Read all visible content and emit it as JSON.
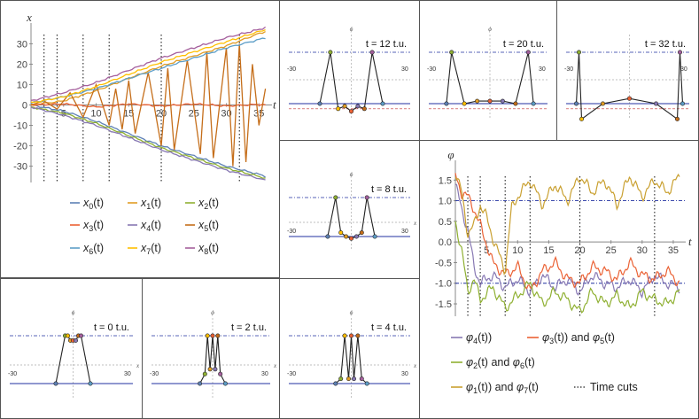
{
  "chart_data": [
    {
      "id": "trajectories",
      "type": "line",
      "xlabel": "t",
      "ylabel": "x",
      "xlim": [
        0,
        37
      ],
      "ylim": [
        -38,
        38
      ],
      "xticks": [
        5,
        10,
        15,
        20,
        25,
        30,
        35
      ],
      "yticks": [
        -30,
        -20,
        -10,
        0,
        10,
        20,
        30
      ],
      "time_cuts": [
        2,
        4,
        8,
        12,
        20,
        32
      ],
      "series": [
        {
          "name": "x",
          "sub": "0",
          "color": "#5e81b5",
          "x": [
            0,
            5,
            10,
            15,
            20,
            25,
            30,
            35,
            36
          ],
          "y": [
            0,
            -3,
            -8,
            -14,
            -20,
            -25,
            -30,
            -34,
            -35
          ]
        },
        {
          "name": "x",
          "sub": "1",
          "color": "#e19c24",
          "x": [
            0,
            5,
            10,
            15,
            20,
            25,
            30,
            35,
            36
          ],
          "y": [
            0,
            2,
            7,
            13,
            19,
            24,
            29,
            35,
            36
          ]
        },
        {
          "name": "x",
          "sub": "2",
          "color": "#8fb032",
          "x": [
            0,
            5,
            10,
            15,
            20,
            25,
            30,
            35,
            36
          ],
          "y": [
            -1,
            -4,
            -9,
            -15,
            -21,
            -26,
            -31,
            -35,
            -36
          ]
        },
        {
          "name": "x",
          "sub": "3",
          "color": "#eb6235",
          "x": [
            0,
            5,
            10,
            15,
            20,
            25,
            30,
            35,
            36
          ],
          "y": [
            0,
            0.5,
            -1,
            0.5,
            -0.5,
            0.5,
            -0.5,
            0.3,
            0
          ]
        },
        {
          "name": "x",
          "sub": "4",
          "color": "#8778b3",
          "x": [
            0,
            5,
            10,
            15,
            20,
            25,
            30,
            35,
            36
          ],
          "y": [
            -1,
            -5,
            -10,
            -16,
            -22,
            -27,
            -32,
            -36,
            -37
          ]
        },
        {
          "name": "x",
          "sub": "5",
          "color": "#c56e1a",
          "x": [
            0,
            2,
            4,
            6,
            8,
            10,
            12,
            13,
            14,
            15,
            16,
            18,
            20,
            21,
            22,
            24,
            26,
            27,
            28,
            30,
            31,
            32,
            33,
            34,
            35,
            36
          ],
          "y": [
            0,
            2,
            -2,
            6,
            -6,
            10,
            -10,
            8,
            -12,
            12,
            -14,
            16,
            -20,
            18,
            -22,
            22,
            -24,
            26,
            -26,
            28,
            -30,
            30,
            -28,
            20,
            -10,
            8
          ]
        },
        {
          "name": "x",
          "sub": "6",
          "color": "#5d9ec7",
          "x": [
            0,
            5,
            10,
            15,
            20,
            25,
            30,
            35,
            36
          ],
          "y": [
            1,
            4,
            8,
            13,
            18,
            23,
            28,
            32,
            33
          ]
        },
        {
          "name": "x",
          "sub": "7",
          "color": "#ffbf00",
          "x": [
            0,
            5,
            10,
            15,
            20,
            25,
            30,
            35,
            36
          ],
          "y": [
            1,
            4,
            9,
            15,
            21,
            26,
            31,
            36,
            37
          ]
        },
        {
          "name": "x",
          "sub": "8",
          "color": "#a5609d",
          "x": [
            0,
            5,
            10,
            15,
            20,
            25,
            30,
            35,
            36
          ],
          "y": [
            2,
            6,
            11,
            17,
            23,
            28,
            33,
            37,
            38
          ]
        }
      ]
    },
    {
      "id": "phases",
      "type": "line",
      "xlabel": "t",
      "ylabel": "φ",
      "xlim": [
        0,
        37
      ],
      "ylim": [
        -1.8,
        1.85
      ],
      "xticks": [
        5,
        10,
        15,
        20,
        25,
        30,
        35
      ],
      "yticks": [
        -1.5,
        -1.0,
        -0.5,
        0.0,
        0.5,
        1.0,
        1.5
      ],
      "ref_lines": [
        1.0,
        -1.0
      ],
      "time_cuts": [
        2,
        4,
        8,
        12,
        20,
        32
      ],
      "series": [
        {
          "label": [
            "φ₄(t))"
          ],
          "color": "#8778b3",
          "x": [
            0,
            1,
            2,
            3,
            4,
            6,
            8,
            10,
            12,
            14,
            16,
            18,
            20,
            22,
            24,
            26,
            28,
            30,
            32,
            34,
            36
          ],
          "y": [
            1.4,
            0.8,
            0.3,
            -0.6,
            -1.0,
            -0.8,
            -1.1,
            -0.9,
            -1.2,
            -0.8,
            -1.1,
            -0.9,
            -1.2,
            -0.8,
            -1.0,
            -1.1,
            -0.9,
            -1.2,
            -0.8,
            -1.0,
            -1.1
          ]
        },
        {
          "label": [
            "φ₃(t)) and ",
            "φ₅(t)"
          ],
          "color": "#eb6235",
          "x": [
            0,
            1,
            2,
            3,
            4,
            6,
            8,
            10,
            12,
            14,
            16,
            18,
            20,
            22,
            24,
            26,
            28,
            30,
            32,
            34,
            36
          ],
          "y": [
            1.6,
            1.2,
            1.1,
            0.8,
            0.4,
            -0.5,
            -0.8,
            -0.6,
            -1.2,
            -0.7,
            -0.5,
            -0.9,
            -1.0,
            -0.6,
            -0.7,
            -0.9,
            -0.5,
            -0.8,
            -0.9,
            -0.7,
            -1.0
          ]
        },
        {
          "label": [
            "φ₂(t) and ",
            "φ₆(t)"
          ],
          "color": "#8fb032",
          "x": [
            0,
            1,
            2,
            3,
            4,
            6,
            8,
            10,
            12,
            14,
            16,
            18,
            20,
            22,
            24,
            26,
            28,
            30,
            32,
            34,
            36
          ],
          "y": [
            0.5,
            -0.2,
            -1.2,
            -0.9,
            -1.4,
            -1.1,
            -1.6,
            -1.3,
            -1.0,
            -1.5,
            -1.2,
            -1.4,
            -1.7,
            -1.2,
            -1.5,
            -1.3,
            -1.6,
            -1.2,
            -1.4,
            -1.5,
            -1.2
          ]
        },
        {
          "label": [
            "φ₁(t)) and ",
            "φ₇(t)"
          ],
          "color": "#c9a030",
          "x": [
            0,
            1,
            2,
            3,
            4,
            5,
            6,
            8,
            9,
            10,
            11,
            12,
            14,
            16,
            18,
            20,
            22,
            24,
            26,
            28,
            30,
            32,
            34,
            36
          ],
          "y": [
            1.7,
            1.2,
            0.2,
            0.4,
            0.9,
            0.6,
            0.1,
            -0.7,
            0.8,
            1.1,
            1.3,
            1.5,
            0.9,
            1.4,
            1.0,
            1.6,
            1.2,
            1.5,
            0.9,
            1.6,
            1.1,
            1.5,
            1.2,
            1.6
          ]
        }
      ],
      "time_cuts_label": "Time cuts"
    }
  ],
  "x_legend": [
    {
      "sub": "0",
      "suffix": "(t)"
    },
    {
      "sub": "1",
      "suffix": "(t)"
    },
    {
      "sub": "2",
      "suffix": "(t)"
    },
    {
      "sub": "3",
      "suffix": "(t)"
    },
    {
      "sub": "4",
      "suffix": "(t)"
    },
    {
      "sub": "5",
      "suffix": "(t)"
    },
    {
      "sub": "6",
      "suffix": "(t)"
    },
    {
      "sub": "7",
      "suffix": "(t)"
    },
    {
      "sub": "8",
      "suffix": "(t)"
    }
  ],
  "snapshots": [
    {
      "label": "t = 0 t.u.",
      "phi_label": "ϕ",
      "x_label": "x",
      "left_tick": "-30",
      "right_tick": "30",
      "points_x": [
        -13,
        -6,
        -4,
        -2,
        0,
        2,
        4,
        6,
        13
      ],
      "points_phi": [
        0,
        1,
        1,
        0.9,
        0.9,
        0.9,
        1,
        1,
        0
      ],
      "colors": [
        "#5e81b5",
        "#8fb032",
        "#ffbf00",
        "#e19c24",
        "#eb6235",
        "#8778b3",
        "#c56e1a",
        "#a5609d",
        "#5d9ec7"
      ]
    },
    {
      "label": "t = 2 t.u.",
      "phi_label": "ϕ",
      "x_label": "x",
      "left_tick": "-30",
      "right_tick": "30",
      "points_x": [
        -10,
        -6,
        -4,
        -2,
        0,
        2,
        4,
        6,
        10
      ],
      "points_phi": [
        0,
        0.2,
        1,
        0.3,
        1,
        0.3,
        1,
        0.2,
        0
      ],
      "colors": [
        "#5e81b5",
        "#8fb032",
        "#ffbf00",
        "#e19c24",
        "#eb6235",
        "#8778b3",
        "#c56e1a",
        "#a5609d",
        "#5d9ec7"
      ]
    },
    {
      "label": "t = 4 t.u.",
      "phi_label": "ϕ",
      "x_label": "x",
      "left_tick": "-30",
      "right_tick": "30",
      "points_x": [
        -12,
        -8,
        -5,
        -2,
        0,
        2,
        5,
        8,
        12
      ],
      "points_phi": [
        0,
        0.1,
        1,
        0.1,
        1,
        0.1,
        1,
        0.1,
        0
      ],
      "colors": [
        "#5e81b5",
        "#8fb032",
        "#ffbf00",
        "#e19c24",
        "#eb6235",
        "#8778b3",
        "#c56e1a",
        "#a5609d",
        "#5d9ec7"
      ]
    },
    {
      "label": "t = 8 t.u.",
      "phi_label": "ϕ",
      "x_label": "x",
      "left_tick": "-30",
      "right_tick": "30",
      "points_x": [
        -18,
        -12,
        -8,
        -4,
        0,
        4,
        8,
        12,
        18
      ],
      "points_phi": [
        0,
        1,
        0.1,
        0,
        -0.05,
        0,
        0.1,
        1,
        0
      ],
      "colors": [
        "#5e81b5",
        "#8fb032",
        "#ffbf00",
        "#e19c24",
        "#eb6235",
        "#8778b3",
        "#c56e1a",
        "#a5609d",
        "#5d9ec7"
      ]
    },
    {
      "label": "t = 12 t.u.",
      "phi_label": "ϕ",
      "x_label": "",
      "left_tick": "-30",
      "right_tick": "30",
      "points_x": [
        -24,
        -16,
        -10,
        -5,
        0,
        5,
        10,
        16,
        24
      ],
      "points_phi": [
        0,
        1,
        -0.1,
        -0.05,
        -0.15,
        -0.05,
        -0.1,
        1,
        0
      ],
      "colors": [
        "#5e81b5",
        "#8fb032",
        "#ffbf00",
        "#e19c24",
        "#eb6235",
        "#8778b3",
        "#c56e1a",
        "#a5609d",
        "#5d9ec7"
      ]
    },
    {
      "label": "t = 20 t.u.",
      "phi_label": "ϕ",
      "x_label": "",
      "left_tick": "-30",
      "right_tick": "30",
      "points_x": [
        -34,
        -30,
        -20,
        -10,
        0,
        10,
        20,
        30,
        34
      ],
      "points_phi": [
        0,
        1,
        0,
        0.05,
        0.05,
        0.05,
        0,
        1,
        0
      ],
      "colors": [
        "#5e81b5",
        "#8fb032",
        "#ffbf00",
        "#e19c24",
        "#eb6235",
        "#8778b3",
        "#c56e1a",
        "#a5609d",
        "#5d9ec7"
      ]
    },
    {
      "label": "t = 32 t.u.",
      "phi_label": "",
      "x_label": "",
      "left_tick": "-30",
      "right_tick": "30",
      "points_x": [
        -40,
        -38,
        -36,
        -20,
        0,
        20,
        36,
        38,
        40
      ],
      "points_phi": [
        0,
        1,
        -0.3,
        0,
        0.1,
        0,
        -0.3,
        1,
        0
      ],
      "colors": [
        "#5e81b5",
        "#8fb032",
        "#ffbf00",
        "#e19c24",
        "#eb6235",
        "#8778b3",
        "#c56e1a",
        "#a5609d",
        "#5d9ec7"
      ]
    }
  ]
}
